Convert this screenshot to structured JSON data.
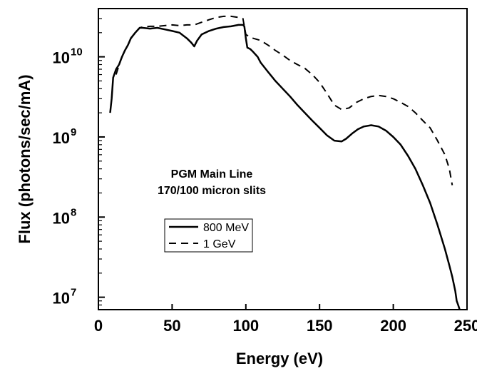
{
  "chart_data": {
    "type": "line",
    "xlabel": "Energy (eV)",
    "ylabel": "Flux (photons/sec/mA)",
    "xlim": [
      0,
      250
    ],
    "ylim": [
      7000000,
      40000000000
    ],
    "yscale": "log",
    "grid": false,
    "x_ticks": [
      0,
      50,
      100,
      150,
      200,
      250
    ],
    "y_ticks": [
      {
        "value": 10000000,
        "base": "10",
        "exp": "7"
      },
      {
        "value": 100000000,
        "base": "10",
        "exp": "8"
      },
      {
        "value": 1000000000,
        "base": "10",
        "exp": "9"
      },
      {
        "value": 10000000000,
        "base": "10",
        "exp": "10"
      }
    ],
    "annotation": [
      "PGM Main Line",
      "170/100 micron slits"
    ],
    "legend_position": "center-left",
    "series": [
      {
        "name": "800 MeV",
        "style": "solid",
        "x": [
          8,
          9,
          10,
          12,
          14,
          16,
          18,
          20,
          22,
          25,
          28,
          30,
          35,
          40,
          45,
          50,
          55,
          60,
          63,
          65,
          67,
          70,
          75,
          80,
          85,
          90,
          95,
          98,
          99,
          100,
          101,
          103,
          105,
          108,
          110,
          115,
          120,
          125,
          130,
          135,
          140,
          145,
          150,
          155,
          160,
          165,
          168,
          172,
          176,
          180,
          185,
          190,
          195,
          200,
          205,
          210,
          215,
          220,
          225,
          230,
          235,
          238,
          240,
          242,
          243,
          244,
          245
        ],
        "y": [
          2000000000,
          3000000000,
          5500000000,
          7000000000,
          8000000000,
          10000000000,
          12000000000,
          14000000000,
          17000000000,
          20000000000,
          23000000000,
          23000000000,
          22500000000,
          23000000000,
          22000000000,
          21000000000,
          20000000000,
          17000000000,
          15000000000,
          13500000000,
          16000000000,
          19000000000,
          21000000000,
          22500000000,
          23500000000,
          24000000000,
          25000000000,
          25000000000,
          24000000000,
          17000000000,
          13000000000,
          12500000000,
          11500000000,
          10000000000,
          8500000000,
          6500000000,
          5000000000,
          4000000000,
          3200000000,
          2500000000,
          2000000000,
          1600000000,
          1300000000,
          1050000000,
          900000000,
          880000000,
          950000000,
          1100000000,
          1250000000,
          1350000000,
          1400000000,
          1350000000,
          1200000000,
          1000000000,
          800000000,
          580000000,
          400000000,
          250000000,
          150000000,
          80000000,
          40000000,
          25000000,
          18000000,
          12000000,
          9000000,
          8000000,
          7000000
        ]
      },
      {
        "name": "1 GeV",
        "style": "dashed",
        "x": [
          12,
          15,
          18,
          20,
          22,
          25,
          28,
          30,
          35,
          40,
          45,
          50,
          55,
          60,
          65,
          70,
          75,
          80,
          85,
          90,
          95,
          98,
          99,
          100,
          102,
          105,
          110,
          115,
          120,
          125,
          130,
          135,
          140,
          145,
          150,
          155,
          160,
          165,
          170,
          175,
          180,
          185,
          190,
          195,
          200,
          205,
          210,
          215,
          220,
          225,
          230,
          235,
          238,
          240
        ],
        "y": [
          6000000000,
          9000000000,
          12000000000,
          14000000000,
          17000000000,
          20000000000,
          23000000000,
          23500000000,
          24000000000,
          24000000000,
          24500000000,
          25000000000,
          24500000000,
          25000000000,
          25000000000,
          27000000000,
          29000000000,
          31000000000,
          32000000000,
          32000000000,
          31000000000,
          30000000000,
          24000000000,
          19000000000,
          18000000000,
          17000000000,
          16000000000,
          14000000000,
          12000000000,
          10500000000,
          9000000000,
          8000000000,
          7200000000,
          6000000000,
          4800000000,
          3500000000,
          2500000000,
          2200000000,
          2300000000,
          2700000000,
          3000000000,
          3200000000,
          3300000000,
          3200000000,
          3000000000,
          2700000000,
          2400000000,
          2000000000,
          1600000000,
          1300000000,
          900000000,
          600000000,
          400000000,
          250000000
        ]
      }
    ]
  }
}
